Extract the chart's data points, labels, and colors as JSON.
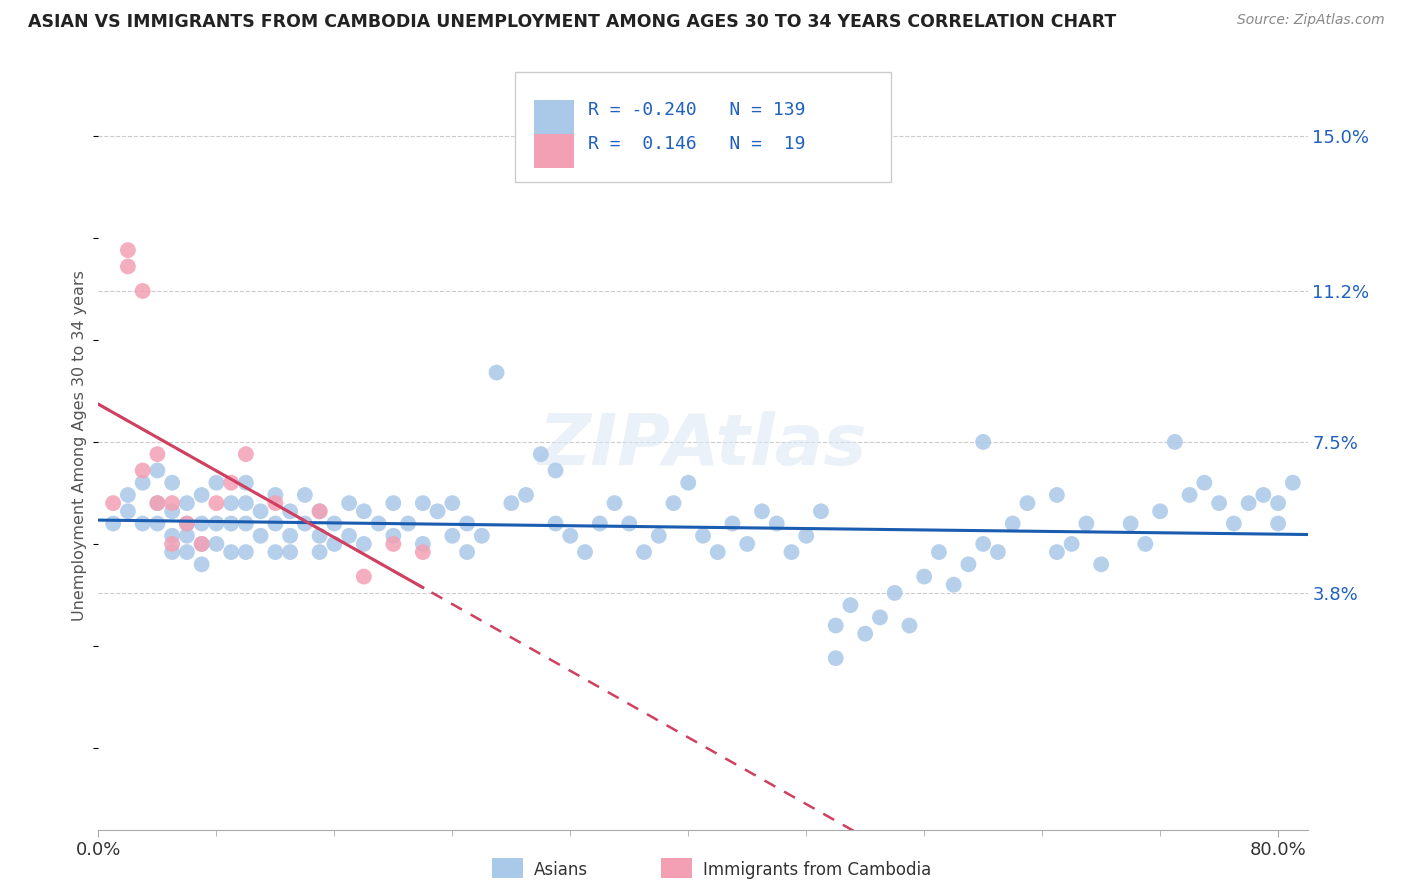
{
  "title": "ASIAN VS IMMIGRANTS FROM CAMBODIA UNEMPLOYMENT AMONG AGES 30 TO 34 YEARS CORRELATION CHART",
  "source": "Source: ZipAtlas.com",
  "ylabel": "Unemployment Among Ages 30 to 34 years",
  "xlim": [
    0.0,
    0.82
  ],
  "ylim": [
    -0.02,
    0.168
  ],
  "yticks": [
    0.038,
    0.075,
    0.112,
    0.15
  ],
  "ytick_labels": [
    "3.8%",
    "7.5%",
    "11.2%",
    "15.0%"
  ],
  "watermark": "ZIPAtlas",
  "asian_color": "#aac8e8",
  "cambodia_color": "#f4a0b4",
  "asian_line_color": "#1a5cb0",
  "cambodia_line_color": "#d04060",
  "asian_scatter_x": [
    0.01,
    0.02,
    0.02,
    0.03,
    0.03,
    0.04,
    0.04,
    0.04,
    0.05,
    0.05,
    0.05,
    0.05,
    0.06,
    0.06,
    0.06,
    0.06,
    0.07,
    0.07,
    0.07,
    0.07,
    0.08,
    0.08,
    0.08,
    0.09,
    0.09,
    0.09,
    0.1,
    0.1,
    0.1,
    0.1,
    0.11,
    0.11,
    0.12,
    0.12,
    0.12,
    0.13,
    0.13,
    0.13,
    0.14,
    0.14,
    0.15,
    0.15,
    0.15,
    0.16,
    0.16,
    0.17,
    0.17,
    0.18,
    0.18,
    0.19,
    0.2,
    0.2,
    0.21,
    0.22,
    0.22,
    0.23,
    0.24,
    0.24,
    0.25,
    0.25,
    0.26,
    0.27,
    0.28,
    0.29,
    0.3,
    0.31,
    0.31,
    0.32,
    0.33,
    0.34,
    0.35,
    0.36,
    0.37,
    0.38,
    0.39,
    0.4,
    0.41,
    0.42,
    0.43,
    0.44,
    0.45,
    0.46,
    0.47,
    0.48,
    0.49,
    0.5,
    0.51,
    0.52,
    0.53,
    0.54,
    0.55,
    0.56,
    0.57,
    0.58,
    0.59,
    0.6,
    0.61,
    0.62,
    0.63,
    0.65,
    0.66,
    0.67,
    0.68,
    0.7,
    0.71,
    0.72,
    0.73,
    0.74,
    0.75,
    0.76,
    0.77,
    0.78,
    0.79,
    0.8,
    0.8,
    0.81,
    0.6,
    0.65,
    0.5
  ],
  "asian_scatter_y": [
    0.055,
    0.062,
    0.058,
    0.065,
    0.055,
    0.068,
    0.06,
    0.055,
    0.065,
    0.058,
    0.052,
    0.048,
    0.06,
    0.055,
    0.052,
    0.048,
    0.062,
    0.055,
    0.05,
    0.045,
    0.065,
    0.055,
    0.05,
    0.06,
    0.055,
    0.048,
    0.065,
    0.06,
    0.055,
    0.048,
    0.058,
    0.052,
    0.062,
    0.055,
    0.048,
    0.058,
    0.052,
    0.048,
    0.062,
    0.055,
    0.058,
    0.052,
    0.048,
    0.055,
    0.05,
    0.06,
    0.052,
    0.058,
    0.05,
    0.055,
    0.06,
    0.052,
    0.055,
    0.06,
    0.05,
    0.058,
    0.06,
    0.052,
    0.055,
    0.048,
    0.052,
    0.092,
    0.06,
    0.062,
    0.072,
    0.055,
    0.068,
    0.052,
    0.048,
    0.055,
    0.06,
    0.055,
    0.048,
    0.052,
    0.06,
    0.065,
    0.052,
    0.048,
    0.055,
    0.05,
    0.058,
    0.055,
    0.048,
    0.052,
    0.058,
    0.03,
    0.035,
    0.028,
    0.032,
    0.038,
    0.03,
    0.042,
    0.048,
    0.04,
    0.045,
    0.05,
    0.048,
    0.055,
    0.06,
    0.048,
    0.05,
    0.055,
    0.045,
    0.055,
    0.05,
    0.058,
    0.075,
    0.062,
    0.065,
    0.06,
    0.055,
    0.06,
    0.062,
    0.055,
    0.06,
    0.065,
    0.075,
    0.062,
    0.022
  ],
  "cambodia_scatter_x": [
    0.01,
    0.02,
    0.02,
    0.03,
    0.03,
    0.04,
    0.04,
    0.05,
    0.05,
    0.06,
    0.07,
    0.08,
    0.09,
    0.1,
    0.12,
    0.15,
    0.18,
    0.2,
    0.22
  ],
  "cambodia_scatter_y": [
    0.06,
    0.118,
    0.122,
    0.112,
    0.068,
    0.072,
    0.06,
    0.06,
    0.05,
    0.055,
    0.05,
    0.06,
    0.065,
    0.072,
    0.06,
    0.058,
    0.042,
    0.05,
    0.048
  ]
}
